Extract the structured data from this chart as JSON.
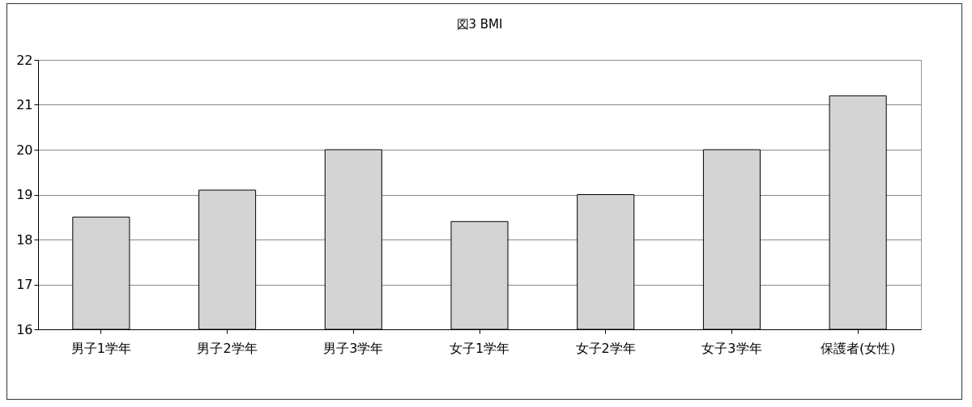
{
  "chart_data": {
    "type": "bar",
    "title": "図3 BMI",
    "categories": [
      "男子1学年",
      "男子2学年",
      "男子3学年",
      "女子1学年",
      "女子2学年",
      "女子3学年",
      "保護者(女性)"
    ],
    "values": [
      18.5,
      19.1,
      20.0,
      18.4,
      19.0,
      20.0,
      21.2
    ],
    "color": "#d4d4d4",
    "ylim": [
      16,
      22
    ],
    "yticks": [
      16,
      17,
      18,
      19,
      20,
      21,
      22
    ],
    "grid": "y"
  }
}
